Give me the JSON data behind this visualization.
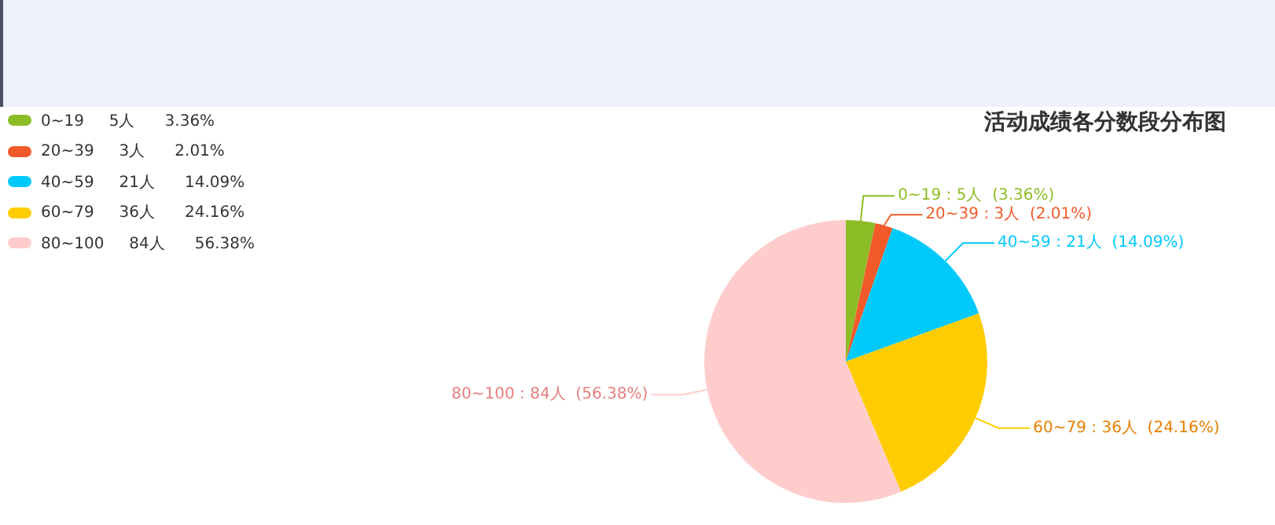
{
  "chart_data": {
    "type": "pie",
    "title": "活动成绩各分数段分布图",
    "categories": [
      "0~19",
      "20~39",
      "40~59",
      "60~79",
      "80~100"
    ],
    "values": [
      5,
      3,
      21,
      36,
      84
    ],
    "colors": [
      "#8cbd26",
      "#f25a2a",
      "#00c9fb",
      "#ffcc00",
      "#ffcccc"
    ],
    "value_labels": [
      "5人      3.36%",
      "3人      2.01%",
      "21人      14.09%",
      "36人      24.16%",
      "84人      56.38%"
    ],
    "annotations": [
      "0~19 : 5人  (3.36%)",
      "20~39 : 3人  (2.01%)",
      "40~59 : 21人  (14.09%)",
      "60~79 : 36人  (24.16%)",
      "80~100 : 84人  (56.38%)"
    ],
    "legend": "top left"
  }
}
